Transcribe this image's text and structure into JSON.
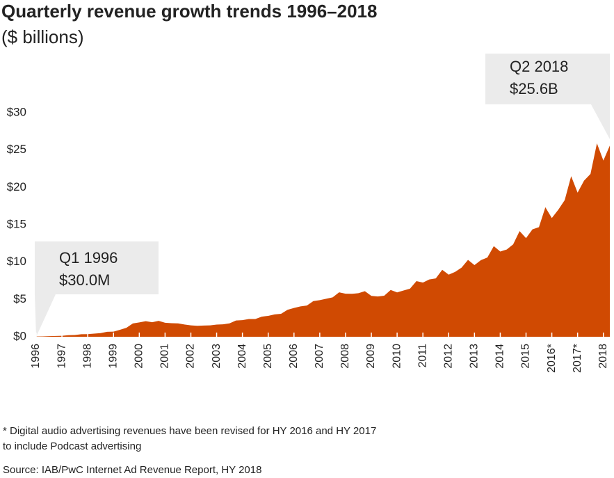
{
  "chart_data": {
    "type": "area",
    "title": "Quarterly revenue growth trends 1996–2018",
    "subtitle": "($ billions)",
    "color": "#d04a02",
    "x": [
      1996,
      1996.25,
      1996.5,
      1996.75,
      1997,
      1997.25,
      1997.5,
      1997.75,
      1998,
      1998.25,
      1998.5,
      1998.75,
      1999,
      1999.25,
      1999.5,
      1999.75,
      2000,
      2000.25,
      2000.5,
      2000.75,
      2001,
      2001.25,
      2001.5,
      2001.75,
      2002,
      2002.25,
      2002.5,
      2002.75,
      2003,
      2003.25,
      2003.5,
      2003.75,
      2004,
      2004.25,
      2004.5,
      2004.75,
      2005,
      2005.25,
      2005.5,
      2005.75,
      2006,
      2006.25,
      2006.5,
      2006.75,
      2007,
      2007.25,
      2007.5,
      2007.75,
      2008,
      2008.25,
      2008.5,
      2008.75,
      2009,
      2009.25,
      2009.5,
      2009.75,
      2010,
      2010.25,
      2010.5,
      2010.75,
      2011,
      2011.25,
      2011.5,
      2011.75,
      2012,
      2012.25,
      2012.5,
      2012.75,
      2013,
      2013.25,
      2013.5,
      2013.75,
      2014,
      2014.25,
      2014.5,
      2014.75,
      2015,
      2015.25,
      2015.5,
      2015.75,
      2016,
      2016.25,
      2016.5,
      2016.75,
      2017,
      2017.25,
      2017.5,
      2017.75,
      2018,
      2018.25
    ],
    "values": [
      0.03,
      0.05,
      0.08,
      0.11,
      0.13,
      0.21,
      0.23,
      0.34,
      0.35,
      0.42,
      0.49,
      0.66,
      0.69,
      0.93,
      1.2,
      1.78,
      1.92,
      2.09,
      1.95,
      2.13,
      1.87,
      1.82,
      1.79,
      1.64,
      1.52,
      1.47,
      1.5,
      1.52,
      1.63,
      1.66,
      1.79,
      2.18,
      2.23,
      2.37,
      2.37,
      2.69,
      2.8,
      2.99,
      3.08,
      3.61,
      3.85,
      4.06,
      4.18,
      4.78,
      4.9,
      5.09,
      5.27,
      5.95,
      5.77,
      5.75,
      5.84,
      6.1,
      5.47,
      5.39,
      5.5,
      6.26,
      5.94,
      6.19,
      6.44,
      7.45,
      7.26,
      7.68,
      7.82,
      8.97,
      8.31,
      8.69,
      9.26,
      10.29,
      9.6,
      10.26,
      10.61,
      12.13,
      11.41,
      11.68,
      12.37,
      14.15,
      13.21,
      14.38,
      14.67,
      17.34,
      15.9,
      17.0,
      18.3,
      21.5,
      19.3,
      20.9,
      21.8,
      25.9,
      23.6,
      25.6
    ],
    "xlim": [
      1996,
      2018.25
    ],
    "xticks": [
      1996,
      1997,
      1998,
      1999,
      2000,
      2001,
      2002,
      2003,
      2004,
      2005,
      2006,
      2007,
      2008,
      2009,
      2010,
      2011,
      2012,
      2013,
      2014,
      2015,
      {
        "value": 2016,
        "label": "2016*"
      },
      {
        "value": 2017,
        "label": "2017*"
      },
      2018
    ],
    "ylim": [
      0,
      30
    ],
    "yticks": [
      {
        "value": 0,
        "label": "$0"
      },
      {
        "value": 5,
        "label": "$5"
      },
      {
        "value": 10,
        "label": "$10"
      },
      {
        "value": 15,
        "label": "$15"
      },
      {
        "value": 20,
        "label": "$20"
      },
      {
        "value": 25,
        "label": "$25"
      },
      {
        "value": 30,
        "label": "$30"
      }
    ],
    "grid": false,
    "annotations": [
      {
        "lines": [
          "Q1 1996",
          "$30.0M"
        ]
      },
      {
        "lines": [
          "Q2 2018",
          "$25.6B"
        ]
      }
    ],
    "footnote": [
      "* Digital audio advertising revenues have been revised for HY 2016 and HY 2017",
      "to include Podcast advertising"
    ],
    "source": "Source: IAB/PwC Internet Ad Revenue Report, HY 2018"
  }
}
